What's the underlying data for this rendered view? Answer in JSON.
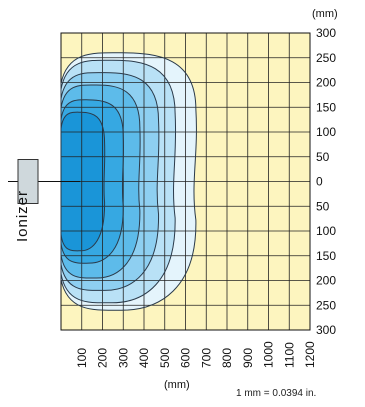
{
  "chart_data": {
    "type": "contour",
    "title": "",
    "xunit": "(mm)",
    "yunit": "(mm)",
    "x_ticks": [
      100,
      200,
      300,
      400,
      500,
      600,
      700,
      800,
      900,
      1000,
      1100,
      1200
    ],
    "y_tick_labels": [
      "300",
      "250",
      "200",
      "150",
      "100",
      "50",
      "0",
      "50",
      "100",
      "150",
      "200",
      "250",
      "300"
    ],
    "x_range": [
      0,
      1200
    ],
    "y_range": [
      -300,
      300
    ],
    "grid": true,
    "contour_levels": [
      {
        "x_extent": 650,
        "y_half": 260,
        "color": "#e4f4fc"
      },
      {
        "x_extent": 550,
        "y_half": 245,
        "color": "#b9e1f6"
      },
      {
        "x_extent": 470,
        "y_half": 220,
        "color": "#8ecff1"
      },
      {
        "x_extent": 380,
        "y_half": 195,
        "color": "#5dbbea"
      },
      {
        "x_extent": 300,
        "y_half": 165,
        "color": "#36a8e2"
      },
      {
        "x_extent": 210,
        "y_half": 140,
        "color": "#1a95d8"
      }
    ],
    "background_color": "#fdf5bf",
    "source_label": "Ionizer",
    "conversion_note": "1 mm = 0.0394 in."
  }
}
